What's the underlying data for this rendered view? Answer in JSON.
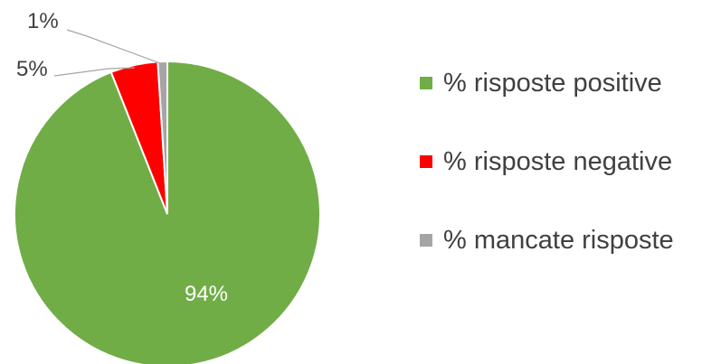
{
  "chart_data": {
    "type": "pie",
    "title": "",
    "series": [
      {
        "name": "% risposte positive",
        "value": 94,
        "label": "94%",
        "color": "#70ad47"
      },
      {
        "name": "% risposte negative",
        "value": 5,
        "label": "5%",
        "color": "#ff0000"
      },
      {
        "name": "% mancate risposte",
        "value": 1,
        "label": "1%",
        "color": "#a5a5a5"
      }
    ],
    "legend_position": "right",
    "data_labels": "outside with leader lines for small slices, inside for largest"
  }
}
